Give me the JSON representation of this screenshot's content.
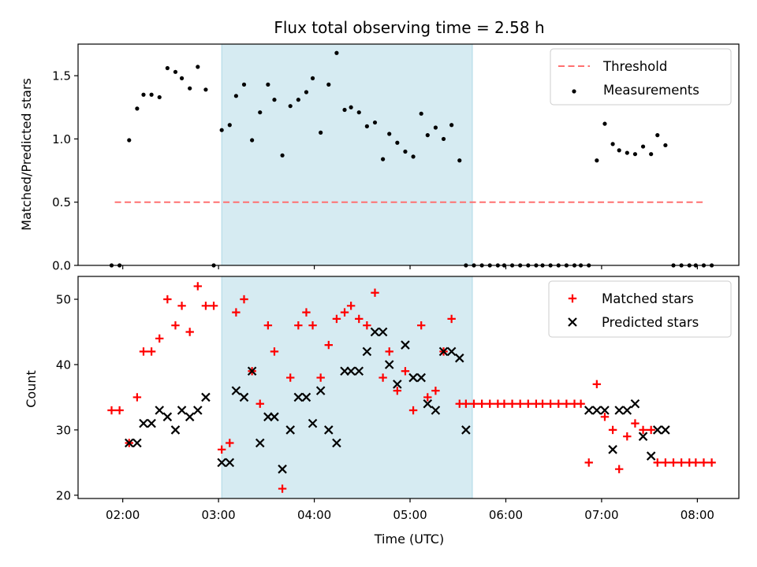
{
  "chart_data": [
    {
      "type": "scatter",
      "title": "Flux total observing time = 2.58 h",
      "xlabel": "",
      "ylabel": "Matched/Predicted stars",
      "ylim": [
        0,
        1.75
      ],
      "xlim": [
        "01:32",
        "08:26"
      ],
      "y_ticks": [
        "0.0",
        "0.5",
        "1.0",
        "1.5"
      ],
      "y_tick_values": [
        0,
        0.5,
        1.0,
        1.5
      ],
      "x_ticks": [
        "02:00",
        "03:00",
        "04:00",
        "05:00",
        "06:00",
        "07:00",
        "08:00"
      ],
      "x_tick_labels_visible": false,
      "highlight_span": {
        "start": "03:02",
        "end": "05:39",
        "color": "#add8e6"
      },
      "legend_position": "upper right",
      "series": [
        {
          "name": "Threshold",
          "kind": "dashed-line",
          "color": "#ff7070",
          "x": [
            "01:55",
            "08:05"
          ],
          "values": [
            0.5,
            0.5
          ]
        },
        {
          "name": "Measurements",
          "kind": "dots",
          "color": "#000000",
          "x": [
            "01:53",
            "01:58",
            "02:04",
            "02:09",
            "02:13",
            "02:18",
            "02:23",
            "02:28",
            "02:33",
            "02:37",
            "02:42",
            "02:47",
            "02:52",
            "02:57",
            "03:02",
            "03:07",
            "03:11",
            "03:16",
            "03:21",
            "03:26",
            "03:31",
            "03:35",
            "03:40",
            "03:45",
            "03:50",
            "03:55",
            "03:59",
            "04:04",
            "04:09",
            "04:14",
            "04:19",
            "04:23",
            "04:28",
            "04:33",
            "04:38",
            "04:43",
            "04:47",
            "04:52",
            "04:57",
            "05:02",
            "05:07",
            "05:11",
            "05:16",
            "05:21",
            "05:26",
            "05:31",
            "05:35",
            "05:40",
            "05:45",
            "05:50",
            "05:55",
            "05:59",
            "06:04",
            "06:09",
            "06:14",
            "06:19",
            "06:23",
            "06:28",
            "06:33",
            "06:38",
            "06:43",
            "06:47",
            "06:52",
            "06:57",
            "07:02",
            "07:07",
            "07:11",
            "07:16",
            "07:21",
            "07:26",
            "07:31",
            "07:35",
            "07:40",
            "07:45",
            "07:50",
            "07:55",
            "07:59",
            "08:04",
            "08:09"
          ],
          "values": [
            0,
            0,
            0.99,
            1.24,
            1.35,
            1.35,
            1.33,
            1.56,
            1.53,
            1.48,
            1.4,
            1.57,
            1.39,
            0,
            1.07,
            1.11,
            1.34,
            1.43,
            0.99,
            1.21,
            1.43,
            1.31,
            0.87,
            1.26,
            1.31,
            1.37,
            1.48,
            1.05,
            1.43,
            1.68,
            1.23,
            1.25,
            1.21,
            1.1,
            1.13,
            0.84,
            1.04,
            0.97,
            0.9,
            0.86,
            1.2,
            1.03,
            1.09,
            1.0,
            1.11,
            0.83,
            0,
            0,
            0,
            0,
            0,
            0,
            0,
            0,
            0,
            0,
            0,
            0,
            0,
            0,
            0,
            0,
            0,
            0.83,
            1.12,
            0.96,
            0.91,
            0.89,
            0.88,
            0.94,
            0.88,
            1.03,
            0.95,
            0,
            0,
            0,
            0,
            0,
            0
          ]
        }
      ]
    },
    {
      "type": "scatter",
      "xlabel": "Time (UTC)",
      "ylabel": "Count",
      "ylim": [
        19.5,
        53.5
      ],
      "xlim": [
        "01:32",
        "08:26"
      ],
      "y_ticks": [
        "20",
        "30",
        "40",
        "50"
      ],
      "y_tick_values": [
        20,
        30,
        40,
        50
      ],
      "x_ticks": [
        "02:00",
        "03:00",
        "04:00",
        "05:00",
        "06:00",
        "07:00",
        "08:00"
      ],
      "highlight_span": {
        "start": "03:02",
        "end": "05:39",
        "color": "#add8e6"
      },
      "legend_position": "upper right",
      "series": [
        {
          "name": "Matched stars",
          "marker": "plus",
          "color": "#ff0000",
          "x": [
            "01:53",
            "01:58",
            "02:04",
            "02:09",
            "02:13",
            "02:18",
            "02:23",
            "02:28",
            "02:33",
            "02:37",
            "02:42",
            "02:47",
            "02:52",
            "02:57",
            "03:02",
            "03:07",
            "03:11",
            "03:16",
            "03:21",
            "03:26",
            "03:31",
            "03:35",
            "03:40",
            "03:45",
            "03:50",
            "03:55",
            "03:59",
            "04:04",
            "04:09",
            "04:14",
            "04:19",
            "04:23",
            "04:28",
            "04:33",
            "04:38",
            "04:43",
            "04:47",
            "04:52",
            "04:57",
            "05:02",
            "05:07",
            "05:11",
            "05:16",
            "05:21",
            "05:26",
            "05:31",
            "05:35",
            "05:40",
            "05:45",
            "05:50",
            "05:55",
            "05:59",
            "06:04",
            "06:09",
            "06:14",
            "06:19",
            "06:23",
            "06:28",
            "06:33",
            "06:38",
            "06:43",
            "06:47",
            "06:52",
            "06:57",
            "07:02",
            "07:07",
            "07:11",
            "07:16",
            "07:21",
            "07:26",
            "07:31",
            "07:35",
            "07:40",
            "07:45",
            "07:50",
            "07:55",
            "07:59",
            "08:04",
            "08:09"
          ],
          "values": [
            33,
            33,
            28,
            35,
            42,
            42,
            44,
            50,
            46,
            49,
            45,
            52,
            49,
            49,
            27,
            28,
            48,
            50,
            39,
            34,
            46,
            42,
            21,
            38,
            46,
            48,
            46,
            38,
            43,
            47,
            48,
            49,
            47,
            46,
            51,
            38,
            42,
            36,
            39,
            33,
            46,
            35,
            36,
            42,
            47,
            34,
            34,
            34,
            34,
            34,
            34,
            34,
            34,
            34,
            34,
            34,
            34,
            34,
            34,
            34,
            34,
            34,
            25,
            37,
            32,
            30,
            24,
            29,
            31,
            30,
            30,
            25,
            25,
            25,
            25,
            25,
            25,
            25,
            25
          ]
        },
        {
          "name": "Predicted stars",
          "marker": "x",
          "color": "#000000",
          "x": [
            "02:04",
            "02:09",
            "02:13",
            "02:18",
            "02:23",
            "02:28",
            "02:33",
            "02:37",
            "02:42",
            "02:47",
            "02:52",
            "03:02",
            "03:07",
            "03:11",
            "03:16",
            "03:21",
            "03:26",
            "03:31",
            "03:35",
            "03:40",
            "03:45",
            "03:50",
            "03:55",
            "03:59",
            "04:04",
            "04:09",
            "04:14",
            "04:19",
            "04:23",
            "04:28",
            "04:33",
            "04:38",
            "04:43",
            "04:47",
            "04:52",
            "04:57",
            "05:02",
            "05:07",
            "05:11",
            "05:16",
            "05:21",
            "05:26",
            "05:31",
            "05:35",
            "06:52",
            "06:57",
            "07:02",
            "07:07",
            "07:11",
            "07:16",
            "07:21",
            "07:26",
            "07:31",
            "07:35",
            "07:40"
          ],
          "values": [
            28,
            28,
            31,
            31,
            33,
            32,
            30,
            33,
            32,
            33,
            35,
            25,
            25,
            36,
            35,
            39,
            28,
            32,
            32,
            24,
            30,
            35,
            35,
            31,
            36,
            30,
            28,
            39,
            39,
            39,
            42,
            45,
            45,
            40,
            37,
            43,
            38,
            38,
            34,
            33,
            42,
            42,
            41,
            30,
            33,
            33,
            33,
            27,
            33,
            33,
            34,
            29,
            26,
            30,
            30
          ]
        }
      ]
    }
  ]
}
